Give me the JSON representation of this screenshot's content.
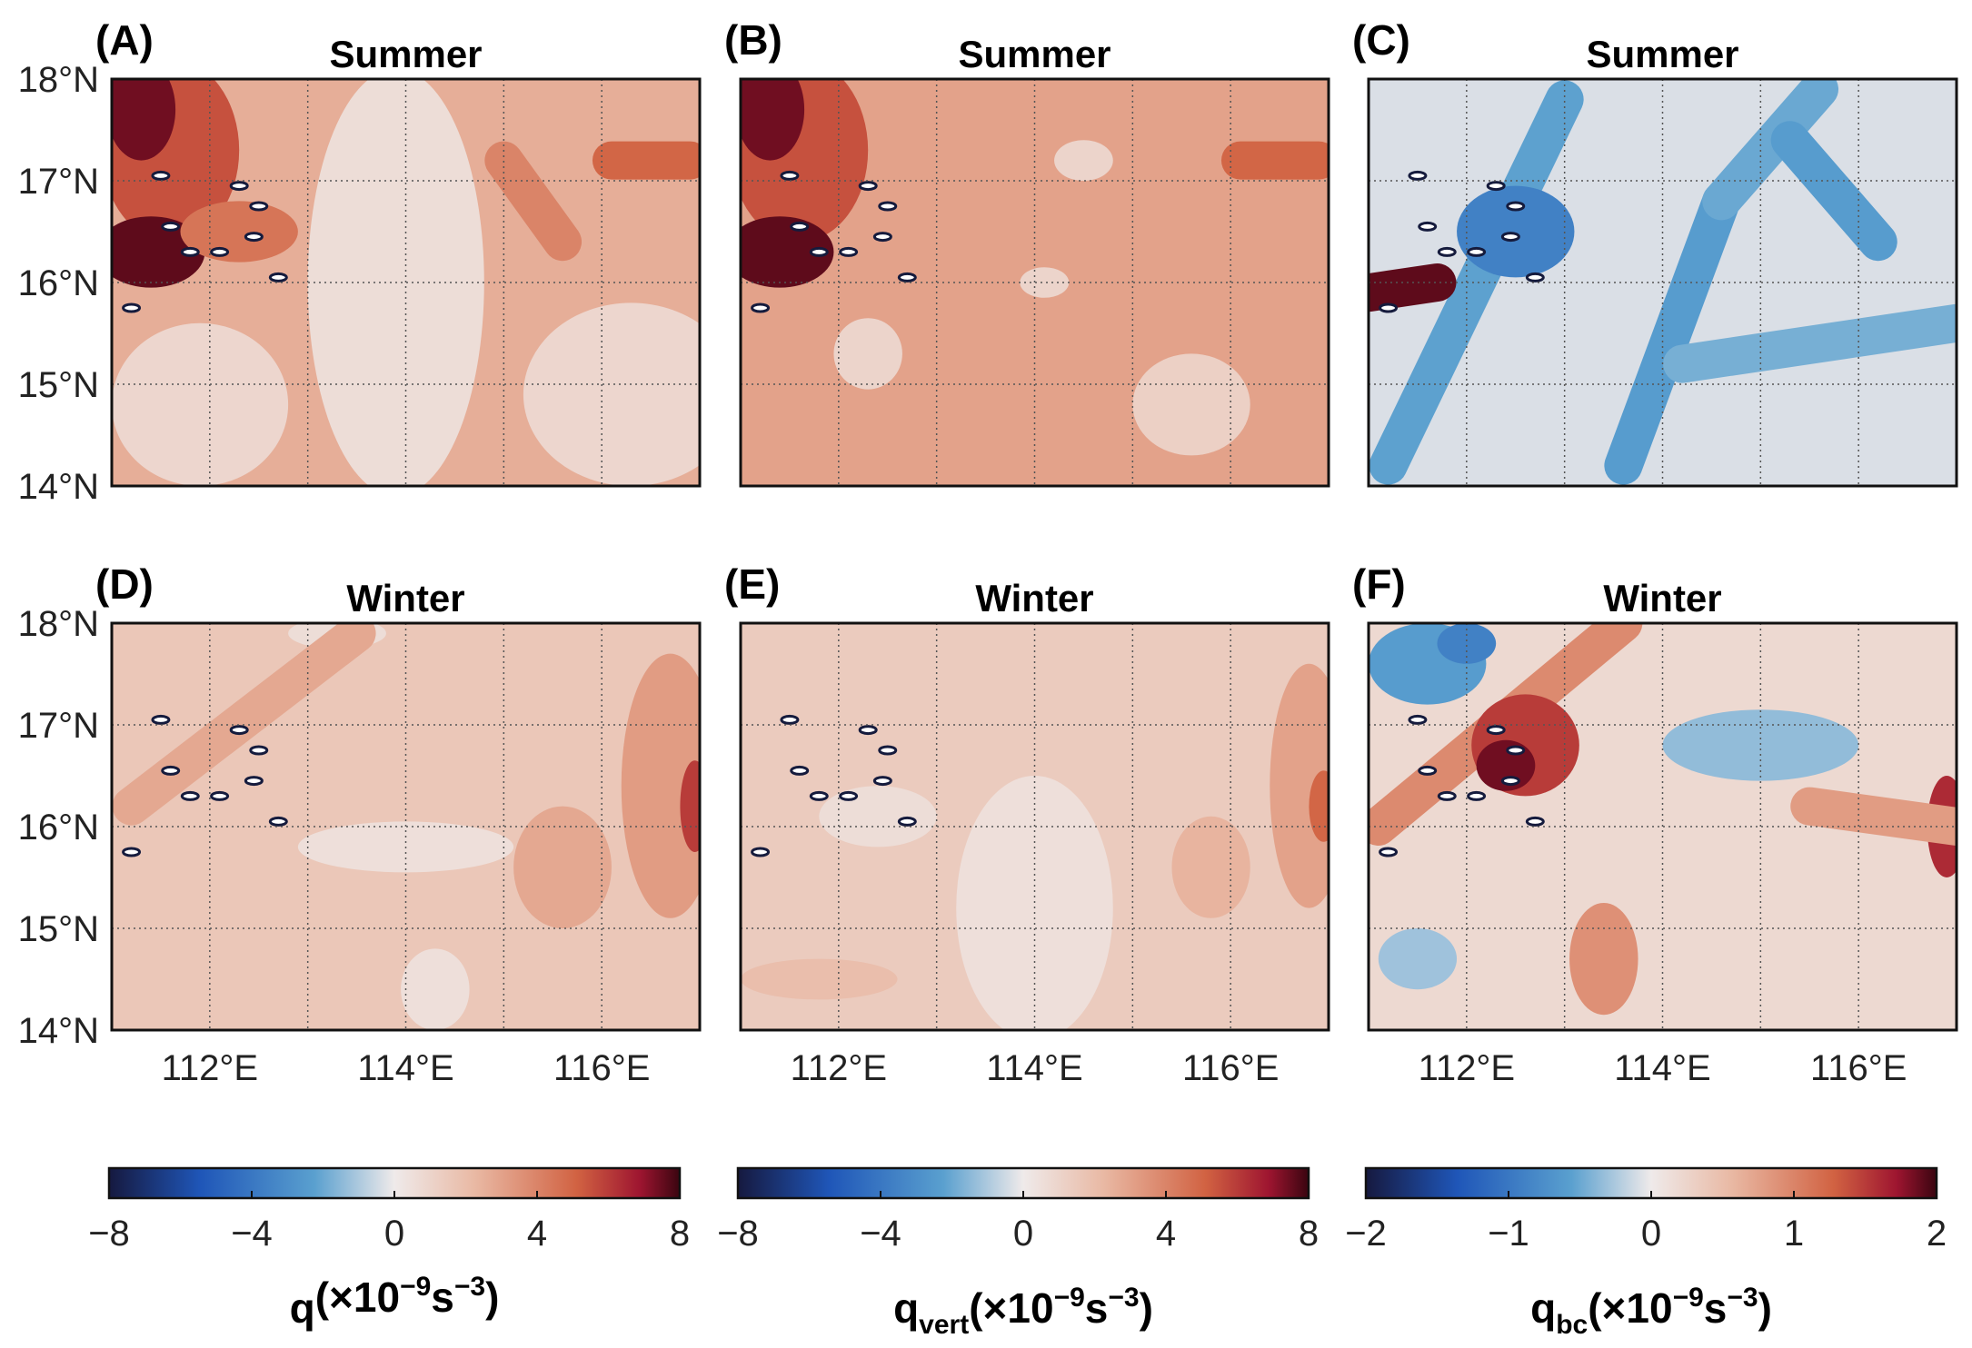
{
  "figure": {
    "colors": {
      "neg_dark": "#16193f",
      "neg_mid": "#1f56b8",
      "neg_light": "#5aa0cf",
      "zero": "#efeaea",
      "pos_light": "#e9b9a4",
      "pos_mid": "#d16242",
      "pos_dark": "#9e1530",
      "pos_max": "#3a0510"
    }
  },
  "chart_data": [
    {
      "type": "heatmap",
      "panel": "(A)",
      "title": "Summer",
      "variable": "q",
      "xlim": [
        111,
        117
      ],
      "ylim": [
        14,
        18
      ],
      "xticks": [
        112,
        114,
        116
      ],
      "yticks": [
        14,
        15,
        16,
        17,
        18
      ],
      "xtick_labels": [
        "112°E",
        "114°E",
        "116°E"
      ],
      "ytick_labels": [
        "14°N",
        "15°N",
        "16°N",
        "17°N",
        "18°N"
      ],
      "clim": [
        -8,
        8
      ],
      "base_value": 2.6,
      "features": [
        {
          "kind": "patch",
          "lon": 113.9,
          "lat": 16.0,
          "rlon": 0.9,
          "rlat": 2.1,
          "value": 0.6
        },
        {
          "kind": "patch",
          "lon": 116.3,
          "lat": 14.9,
          "rlon": 1.1,
          "rlat": 0.9,
          "value": 0.9
        },
        {
          "kind": "patch",
          "lon": 111.9,
          "lat": 14.8,
          "rlon": 0.9,
          "rlat": 0.8,
          "value": 0.9
        },
        {
          "kind": "patch",
          "lon": 111.6,
          "lat": 17.3,
          "rlon": 0.7,
          "rlat": 0.9,
          "value": 5.5
        },
        {
          "kind": "patch",
          "lon": 111.4,
          "lat": 16.3,
          "rlon": 0.55,
          "rlat": 0.35,
          "value": 7.6
        },
        {
          "kind": "patch",
          "lon": 111.3,
          "lat": 17.7,
          "rlon": 0.35,
          "rlat": 0.5,
          "value": 7.4
        },
        {
          "kind": "patch",
          "lon": 112.3,
          "lat": 16.5,
          "rlon": 0.6,
          "rlat": 0.3,
          "value": 4.5
        },
        {
          "kind": "streak",
          "lon1": 115.0,
          "lat1": 17.2,
          "lon2": 115.6,
          "lat2": 16.4,
          "value": 4.0
        },
        {
          "kind": "streak",
          "lon1": 116.1,
          "lat1": 17.2,
          "lon2": 116.9,
          "lat2": 17.2,
          "value": 5.0
        }
      ],
      "islands": [
        [
          111.5,
          17.05
        ],
        [
          112.3,
          16.95
        ],
        [
          112.5,
          16.75
        ],
        [
          111.6,
          16.55
        ],
        [
          111.8,
          16.3
        ],
        [
          112.1,
          16.3
        ],
        [
          112.7,
          16.05
        ],
        [
          112.45,
          16.45
        ],
        [
          111.2,
          15.75
        ]
      ]
    },
    {
      "type": "heatmap",
      "panel": "(B)",
      "title": "Summer",
      "variable": "qvert",
      "xlim": [
        111,
        117
      ],
      "ylim": [
        14,
        18
      ],
      "xticks": [
        112,
        114,
        116
      ],
      "yticks": [
        14,
        15,
        16,
        17,
        18
      ],
      "xtick_labels": [
        "112°E",
        "114°E",
        "116°E"
      ],
      "ytick_labels": [
        "14°N",
        "15°N",
        "16°N",
        "17°N",
        "18°N"
      ],
      "clim": [
        -8,
        8
      ],
      "base_value": 3.0,
      "features": [
        {
          "kind": "patch",
          "lon": 112.3,
          "lat": 15.3,
          "rlon": 0.35,
          "rlat": 0.35,
          "value": 1.0
        },
        {
          "kind": "patch",
          "lon": 115.6,
          "lat": 14.8,
          "rlon": 0.6,
          "rlat": 0.5,
          "value": 1.2
        },
        {
          "kind": "patch",
          "lon": 114.5,
          "lat": 17.2,
          "rlon": 0.3,
          "rlat": 0.2,
          "value": 1.0
        },
        {
          "kind": "patch",
          "lon": 114.1,
          "lat": 16.0,
          "rlon": 0.25,
          "rlat": 0.15,
          "value": 1.0
        },
        {
          "kind": "patch",
          "lon": 111.6,
          "lat": 17.3,
          "rlon": 0.7,
          "rlat": 0.9,
          "value": 5.5
        },
        {
          "kind": "patch",
          "lon": 111.4,
          "lat": 16.3,
          "rlon": 0.55,
          "rlat": 0.35,
          "value": 7.6
        },
        {
          "kind": "patch",
          "lon": 111.3,
          "lat": 17.7,
          "rlon": 0.35,
          "rlat": 0.5,
          "value": 7.4
        },
        {
          "kind": "streak",
          "lon1": 116.1,
          "lat1": 17.2,
          "lon2": 116.9,
          "lat2": 17.2,
          "value": 5.0
        }
      ],
      "islands": [
        [
          111.5,
          17.05
        ],
        [
          112.3,
          16.95
        ],
        [
          112.5,
          16.75
        ],
        [
          111.6,
          16.55
        ],
        [
          111.8,
          16.3
        ],
        [
          112.1,
          16.3
        ],
        [
          112.7,
          16.05
        ],
        [
          112.45,
          16.45
        ],
        [
          111.2,
          15.75
        ]
      ]
    },
    {
      "type": "heatmap",
      "panel": "(C)",
      "title": "Summer",
      "variable": "qbc",
      "xlim": [
        111,
        117
      ],
      "ylim": [
        14,
        18
      ],
      "xticks": [
        112,
        114,
        116
      ],
      "yticks": [
        14,
        15,
        16,
        17,
        18
      ],
      "xtick_labels": [
        "112°E",
        "114°E",
        "116°E"
      ],
      "ytick_labels": [
        "14°N",
        "15°N",
        "16°N",
        "17°N",
        "18°N"
      ],
      "clim": [
        -2,
        2
      ],
      "base_value": -0.08,
      "features": [
        {
          "kind": "streak",
          "lon1": 111.2,
          "lat1": 14.2,
          "lon2": 113.0,
          "lat2": 17.8,
          "value": -0.55
        },
        {
          "kind": "streak",
          "lon1": 113.6,
          "lat1": 14.2,
          "lon2": 114.6,
          "lat2": 16.8,
          "value": -0.6
        },
        {
          "kind": "streak",
          "lon1": 114.6,
          "lat1": 16.8,
          "lon2": 115.6,
          "lat2": 17.9,
          "value": -0.5
        },
        {
          "kind": "streak",
          "lon1": 115.3,
          "lat1": 17.4,
          "lon2": 116.2,
          "lat2": 16.4,
          "value": -0.6
        },
        {
          "kind": "streak",
          "lon1": 114.2,
          "lat1": 15.2,
          "lon2": 117.0,
          "lat2": 15.6,
          "value": -0.45
        },
        {
          "kind": "patch",
          "lon": 112.5,
          "lat": 16.5,
          "rlon": 0.6,
          "rlat": 0.45,
          "value": -0.9
        },
        {
          "kind": "streak",
          "lon1": 111.0,
          "lat1": 15.9,
          "lon2": 111.7,
          "lat2": 16.0,
          "value": 1.9
        }
      ],
      "islands": [
        [
          111.5,
          17.05
        ],
        [
          112.3,
          16.95
        ],
        [
          112.5,
          16.75
        ],
        [
          111.6,
          16.55
        ],
        [
          111.8,
          16.3
        ],
        [
          112.1,
          16.3
        ],
        [
          112.7,
          16.05
        ],
        [
          112.45,
          16.45
        ],
        [
          111.2,
          15.75
        ]
      ]
    },
    {
      "type": "heatmap",
      "panel": "(D)",
      "title": "Winter",
      "variable": "q",
      "xlim": [
        111,
        117
      ],
      "ylim": [
        14,
        18
      ],
      "xticks": [
        112,
        114,
        116
      ],
      "yticks": [
        14,
        15,
        16,
        17,
        18
      ],
      "xtick_labels": [
        "112°E",
        "114°E",
        "116°E"
      ],
      "ytick_labels": [
        "14°N",
        "15°N",
        "16°N",
        "17°N",
        "18°N"
      ],
      "clim": [
        -8,
        8
      ],
      "base_value": 1.6,
      "features": [
        {
          "kind": "patch",
          "lon": 114.0,
          "lat": 15.8,
          "rlon": 1.1,
          "rlat": 0.25,
          "value": 0.5
        },
        {
          "kind": "patch",
          "lon": 114.3,
          "lat": 14.4,
          "rlon": 0.35,
          "rlat": 0.4,
          "value": 0.5
        },
        {
          "kind": "patch",
          "lon": 113.3,
          "lat": 17.9,
          "rlon": 0.5,
          "rlat": 0.15,
          "value": 0.6
        },
        {
          "kind": "streak",
          "lon1": 111.2,
          "lat1": 16.2,
          "lon2": 113.5,
          "lat2": 17.9,
          "value": 2.8
        },
        {
          "kind": "patch",
          "lon": 116.7,
          "lat": 16.4,
          "rlon": 0.5,
          "rlat": 1.3,
          "value": 3.2
        },
        {
          "kind": "patch",
          "lon": 116.95,
          "lat": 16.2,
          "rlon": 0.15,
          "rlat": 0.45,
          "value": 6.0
        },
        {
          "kind": "patch",
          "lon": 115.6,
          "lat": 15.6,
          "rlon": 0.5,
          "rlat": 0.6,
          "value": 2.8
        }
      ],
      "islands": [
        [
          111.5,
          17.05
        ],
        [
          112.3,
          16.95
        ],
        [
          112.5,
          16.75
        ],
        [
          111.6,
          16.55
        ],
        [
          111.8,
          16.3
        ],
        [
          112.1,
          16.3
        ],
        [
          112.7,
          16.05
        ],
        [
          112.45,
          16.45
        ],
        [
          111.2,
          15.75
        ]
      ]
    },
    {
      "type": "heatmap",
      "panel": "(E)",
      "title": "Winter",
      "variable": "qvert",
      "xlim": [
        111,
        117
      ],
      "ylim": [
        14,
        18
      ],
      "xticks": [
        112,
        114,
        116
      ],
      "yticks": [
        14,
        15,
        16,
        17,
        18
      ],
      "xtick_labels": [
        "112°E",
        "114°E",
        "116°E"
      ],
      "ytick_labels": [
        "14°N",
        "15°N",
        "16°N",
        "17°N",
        "18°N"
      ],
      "clim": [
        -8,
        8
      ],
      "base_value": 1.4,
      "features": [
        {
          "kind": "patch",
          "lon": 114.0,
          "lat": 15.2,
          "rlon": 0.8,
          "rlat": 1.3,
          "value": 0.5
        },
        {
          "kind": "patch",
          "lon": 112.4,
          "lat": 16.1,
          "rlon": 0.6,
          "rlat": 0.3,
          "value": 0.6
        },
        {
          "kind": "patch",
          "lon": 116.8,
          "lat": 16.4,
          "rlon": 0.4,
          "rlat": 1.2,
          "value": 3.0
        },
        {
          "kind": "patch",
          "lon": 116.95,
          "lat": 16.2,
          "rlon": 0.15,
          "rlat": 0.35,
          "value": 5.0
        },
        {
          "kind": "patch",
          "lon": 115.8,
          "lat": 15.6,
          "rlon": 0.4,
          "rlat": 0.5,
          "value": 2.4
        },
        {
          "kind": "patch",
          "lon": 111.8,
          "lat": 14.5,
          "rlon": 0.8,
          "rlat": 0.2,
          "value": 2.0
        }
      ],
      "islands": [
        [
          111.5,
          17.05
        ],
        [
          112.3,
          16.95
        ],
        [
          112.5,
          16.75
        ],
        [
          111.6,
          16.55
        ],
        [
          111.8,
          16.3
        ],
        [
          112.1,
          16.3
        ],
        [
          112.7,
          16.05
        ],
        [
          112.45,
          16.45
        ],
        [
          111.2,
          15.75
        ]
      ]
    },
    {
      "type": "heatmap",
      "panel": "(F)",
      "title": "Winter",
      "variable": "qbc",
      "xlim": [
        111,
        117
      ],
      "ylim": [
        14,
        18
      ],
      "xticks": [
        112,
        114,
        116
      ],
      "yticks": [
        14,
        15,
        16,
        17,
        18
      ],
      "xtick_labels": [
        "112°E",
        "114°E",
        "116°E"
      ],
      "ytick_labels": [
        "14°N",
        "15°N",
        "16°N",
        "17°N",
        "18°N"
      ],
      "clim": [
        -2,
        2
      ],
      "base_value": 0.2,
      "features": [
        {
          "kind": "patch",
          "lon": 111.6,
          "lat": 17.6,
          "rlon": 0.6,
          "rlat": 0.4,
          "value": -0.6
        },
        {
          "kind": "patch",
          "lon": 112.0,
          "lat": 17.8,
          "rlon": 0.3,
          "rlat": 0.2,
          "value": -0.9
        },
        {
          "kind": "patch",
          "lon": 115.0,
          "lat": 16.8,
          "rlon": 1.0,
          "rlat": 0.35,
          "value": -0.35
        },
        {
          "kind": "patch",
          "lon": 111.5,
          "lat": 14.7,
          "rlon": 0.4,
          "rlat": 0.3,
          "value": -0.3
        },
        {
          "kind": "streak",
          "lon1": 111.1,
          "lat1": 16.0,
          "lon2": 113.6,
          "lat2": 18.0,
          "value": 0.95
        },
        {
          "kind": "patch",
          "lon": 112.6,
          "lat": 16.8,
          "rlon": 0.55,
          "rlat": 0.5,
          "value": 1.5
        },
        {
          "kind": "patch",
          "lon": 112.4,
          "lat": 16.6,
          "rlon": 0.3,
          "rlat": 0.25,
          "value": 1.85
        },
        {
          "kind": "patch",
          "lon": 113.4,
          "lat": 14.7,
          "rlon": 0.35,
          "rlat": 0.55,
          "value": 0.9
        },
        {
          "kind": "patch",
          "lon": 116.9,
          "lat": 16.0,
          "rlon": 0.2,
          "rlat": 0.5,
          "value": 1.6
        },
        {
          "kind": "streak",
          "lon1": 115.5,
          "lat1": 16.2,
          "lon2": 117.0,
          "lat2": 16.0,
          "value": 0.8
        }
      ],
      "islands": [
        [
          111.5,
          17.05
        ],
        [
          112.3,
          16.95
        ],
        [
          112.5,
          16.75
        ],
        [
          111.6,
          16.55
        ],
        [
          111.8,
          16.3
        ],
        [
          112.1,
          16.3
        ],
        [
          112.7,
          16.05
        ],
        [
          112.45,
          16.45
        ],
        [
          111.2,
          15.75
        ]
      ]
    }
  ],
  "colorbars": [
    {
      "variable": "q",
      "range": [
        -8,
        8
      ],
      "ticks": [
        -8,
        -4,
        0,
        4,
        8
      ],
      "tick_labels": [
        "−8",
        "−4",
        "0",
        "4",
        "8"
      ],
      "label_main": "q",
      "label_sub": "",
      "label_unit": "(×10",
      "label_exp": "−9",
      "label_unit2": "s",
      "label_exp2": "−3",
      "label_close": ")"
    },
    {
      "variable": "qvert",
      "range": [
        -8,
        8
      ],
      "ticks": [
        -8,
        -4,
        0,
        4,
        8
      ],
      "tick_labels": [
        "−8",
        "−4",
        "0",
        "4",
        "8"
      ],
      "label_main": "q",
      "label_sub": "vert",
      "label_unit": "(×10",
      "label_exp": "−9",
      "label_unit2": "s",
      "label_exp2": "−3",
      "label_close": ")"
    },
    {
      "variable": "qbc",
      "range": [
        -2,
        2
      ],
      "ticks": [
        -2,
        -1,
        0,
        1,
        2
      ],
      "tick_labels": [
        "−2",
        "−1",
        "0",
        "1",
        "2"
      ],
      "label_main": "q",
      "label_sub": "bc",
      "label_unit": "(×10",
      "label_exp": "−9",
      "label_unit2": "s",
      "label_exp2": "−3",
      "label_close": ")"
    }
  ]
}
